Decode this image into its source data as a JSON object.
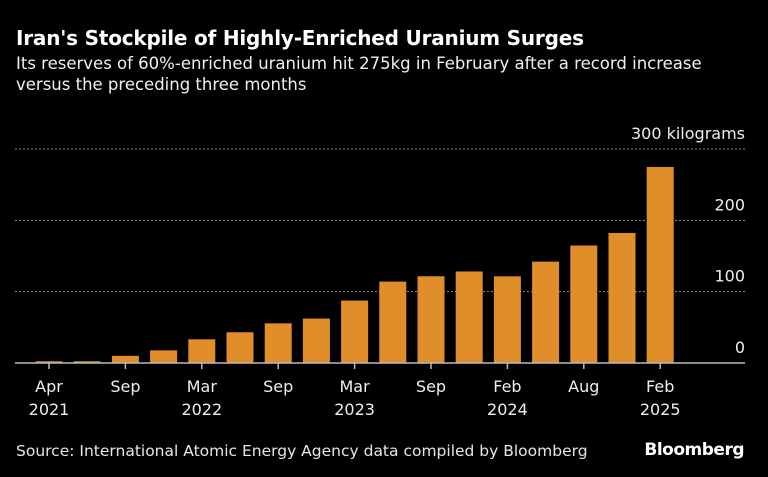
{
  "chart_data": {
    "type": "bar",
    "title": "Iran's Stockpile of Highly-Enriched Uranium Surges",
    "subtitle": "Its reserves of 60%-enriched uranium hit 275kg in February after a record increase versus the preceding three months",
    "unit_label": "kilograms",
    "ylim": [
      0,
      300
    ],
    "yticks": [
      0,
      100,
      200,
      300
    ],
    "ytick_labels": [
      "0",
      "100",
      "200",
      "300 kilograms"
    ],
    "grid": true,
    "bar_color": "#e08e29",
    "values": [
      2.4,
      2.4,
      10,
      17.7,
      33.2,
      43.1,
      55.6,
      62.3,
      87.5,
      114.1,
      121.6,
      128.3,
      121.5,
      142.1,
      164.7,
      182.3,
      274.8
    ],
    "xtick_labels": [
      {
        "index": 0,
        "line1": "Apr",
        "line2": "2021"
      },
      {
        "index": 2,
        "line1": "Sep",
        "line2": ""
      },
      {
        "index": 4,
        "line1": "Mar",
        "line2": "2022"
      },
      {
        "index": 6,
        "line1": "Sep",
        "line2": ""
      },
      {
        "index": 8,
        "line1": "Mar",
        "line2": "2023"
      },
      {
        "index": 10,
        "line1": "Sep",
        "line2": ""
      },
      {
        "index": 12,
        "line1": "Feb",
        "line2": "2024"
      },
      {
        "index": 14,
        "line1": "Aug",
        "line2": ""
      },
      {
        "index": 16,
        "line1": "Feb",
        "line2": "2025"
      }
    ],
    "source": "Source: International Atomic Energy Agency data compiled by Bloomberg"
  },
  "brand": "Bloomberg"
}
